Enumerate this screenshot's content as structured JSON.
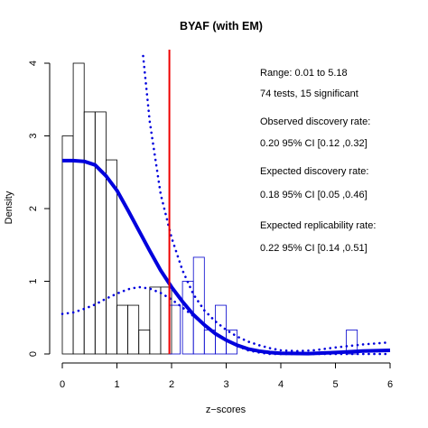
{
  "chart_data": {
    "type": "bar",
    "title": "BYAF (with EM)",
    "xlabel": "z−scores",
    "ylabel": "Density",
    "xlim": [
      0,
      6
    ],
    "ylim": [
      0,
      4
    ],
    "x_ticks": [
      "0",
      "1",
      "2",
      "3",
      "4",
      "5",
      "6"
    ],
    "y_ticks": [
      "0",
      "1",
      "2",
      "3",
      "4"
    ],
    "bin_width": 0.2,
    "histogram_nonsig": {
      "color": "#000000",
      "bins": [
        {
          "x0": 0.0,
          "value": 3.0
        },
        {
          "x0": 0.2,
          "value": 4.0
        },
        {
          "x0": 0.4,
          "value": 3.33
        },
        {
          "x0": 0.6,
          "value": 3.33
        },
        {
          "x0": 0.8,
          "value": 2.67
        },
        {
          "x0": 1.0,
          "value": 0.67
        },
        {
          "x0": 1.2,
          "value": 0.67
        },
        {
          "x0": 1.4,
          "value": 0.33
        },
        {
          "x0": 1.6,
          "value": 0.92
        },
        {
          "x0": 1.8,
          "value": 0.92
        }
      ]
    },
    "histogram_sig": {
      "color": "#0000cc",
      "bins": [
        {
          "x0": 1.96,
          "value": 0.67
        },
        {
          "x0": 2.2,
          "value": 1.0
        },
        {
          "x0": 2.4,
          "value": 1.33
        },
        {
          "x0": 2.6,
          "value": 0.33
        },
        {
          "x0": 2.8,
          "value": 0.67
        },
        {
          "x0": 3.0,
          "value": 0.33
        },
        {
          "x0": 5.2,
          "value": 0.33
        }
      ]
    },
    "fitted_curve": {
      "color": "#0000dd",
      "points": [
        [
          0,
          2.66
        ],
        [
          0.2,
          2.66
        ],
        [
          0.4,
          2.65
        ],
        [
          0.6,
          2.6
        ],
        [
          0.8,
          2.45
        ],
        [
          1.0,
          2.25
        ],
        [
          1.2,
          1.98
        ],
        [
          1.4,
          1.7
        ],
        [
          1.6,
          1.42
        ],
        [
          1.8,
          1.15
        ],
        [
          2.0,
          0.92
        ],
        [
          2.2,
          0.72
        ],
        [
          2.4,
          0.54
        ],
        [
          2.6,
          0.4
        ],
        [
          2.8,
          0.28
        ],
        [
          3.0,
          0.19
        ],
        [
          3.2,
          0.12
        ],
        [
          3.4,
          0.07
        ],
        [
          3.6,
          0.04
        ],
        [
          3.8,
          0.02
        ],
        [
          4.0,
          0.01
        ],
        [
          4.5,
          0.005
        ],
        [
          5.0,
          0.02
        ],
        [
          5.5,
          0.04
        ],
        [
          6.0,
          0.05
        ]
      ]
    },
    "ci_upper": {
      "color": "#0000dd",
      "points": [
        [
          1.48,
          4.1
        ],
        [
          1.6,
          3.2
        ],
        [
          1.8,
          2.2
        ],
        [
          2.0,
          1.6
        ],
        [
          2.2,
          1.15
        ],
        [
          2.4,
          0.82
        ],
        [
          2.6,
          0.6
        ],
        [
          2.8,
          0.45
        ],
        [
          3.0,
          0.33
        ],
        [
          3.2,
          0.24
        ],
        [
          3.4,
          0.17
        ],
        [
          3.6,
          0.12
        ],
        [
          3.8,
          0.08
        ],
        [
          4.0,
          0.05
        ],
        [
          4.3,
          0.04
        ],
        [
          4.6,
          0.05
        ],
        [
          5.0,
          0.09
        ],
        [
          5.5,
          0.13
        ],
        [
          6.0,
          0.16
        ]
      ]
    },
    "ci_lower": {
      "color": "#0000dd",
      "points": [
        [
          0,
          0.55
        ],
        [
          0.2,
          0.57
        ],
        [
          0.4,
          0.62
        ],
        [
          0.6,
          0.68
        ],
        [
          0.8,
          0.76
        ],
        [
          1.0,
          0.83
        ],
        [
          1.2,
          0.89
        ],
        [
          1.4,
          0.92
        ],
        [
          1.6,
          0.9
        ],
        [
          1.8,
          0.84
        ],
        [
          2.0,
          0.75
        ],
        [
          2.2,
          0.64
        ],
        [
          2.4,
          0.52
        ],
        [
          2.6,
          0.4
        ],
        [
          2.8,
          0.29
        ],
        [
          3.0,
          0.19
        ],
        [
          3.2,
          0.11
        ],
        [
          3.4,
          0.05
        ],
        [
          3.6,
          0.02
        ],
        [
          3.8,
          0.0
        ],
        [
          4.5,
          0.0
        ],
        [
          6.0,
          0.0
        ]
      ]
    },
    "significance_line": {
      "x": 1.96,
      "color": "#ee0000"
    },
    "annotations": [
      "Range: 0.01 to 5.18",
      "74 tests, 15 significant",
      "Observed discovery rate:",
      "0.20  95% CI [0.12 ,0.32]",
      "Expected discovery rate:",
      "0.18  95% CI [0.05 ,0.46]",
      "Expected replicability rate:",
      "0.22  95% CI [0.14 ,0.51]"
    ]
  }
}
